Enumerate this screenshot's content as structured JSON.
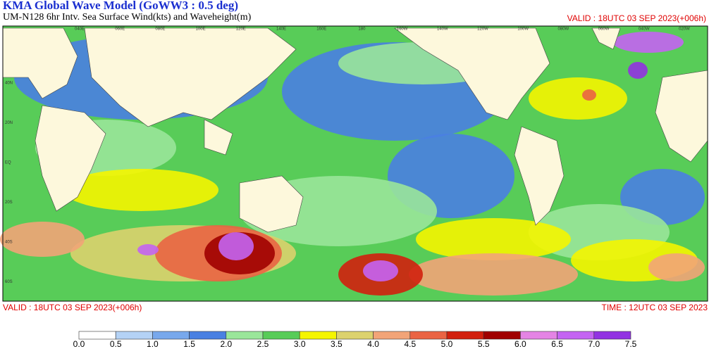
{
  "header": {
    "title": "KMA  Global Wave Model (GoWW3 : 0.5 deg)",
    "subtitle": "UM-N128  6hr Intv. Sea Surface Wind(kts) and Waveheight(m)",
    "valid_top": "VALID : 18UTC 03 SEP 2023(+006h)"
  },
  "footer": {
    "valid": "VALID : 18UTC 03 SEP 2023(+006h)",
    "time": "TIME : 12UTC 03 SEP 2023"
  },
  "map": {
    "lat_labels": [
      "40N",
      "20N",
      "EQ",
      "20S",
      "40S",
      "60S"
    ],
    "lon_labels": [
      "040E",
      "060E",
      "080E",
      "100E",
      "120E",
      "140E",
      "160E",
      "180",
      "160W",
      "140W",
      "120W",
      "100W",
      "080W",
      "060W",
      "040W",
      "020W"
    ]
  },
  "colorbar": {
    "ticks": [
      {
        "value": 0,
        "label": "0.0"
      },
      0.5,
      {
        "value": 1,
        "label": "1.0"
      },
      1.5,
      {
        "value": 2,
        "label": "2.0"
      },
      2.5,
      {
        "value": 3,
        "label": "3.0"
      },
      3.5,
      {
        "value": 4,
        "label": "4.0"
      },
      4.5,
      {
        "value": 5,
        "label": "5.0"
      },
      5.5,
      {
        "value": 6,
        "label": "6.0"
      },
      6.5,
      {
        "value": 7,
        "label": "7.0"
      },
      7.5
    ],
    "colors": [
      "#ffffff",
      "#b4d2f5",
      "#78a8ec",
      "#4a80e2",
      "#9ae69a",
      "#58cc58",
      "#f5f500",
      "#dcd26e",
      "#f2a478",
      "#ea6444",
      "#d2200e",
      "#a00000",
      "#e484e4",
      "#c464f2",
      "#9232e2"
    ]
  }
}
